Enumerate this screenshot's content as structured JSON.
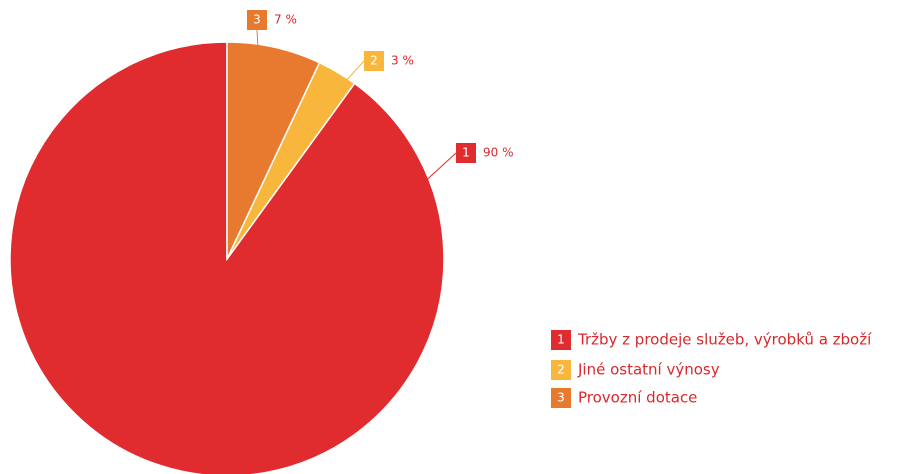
{
  "chart_data": {
    "type": "pie",
    "categories": [
      "Tržby z prodeje služeb, výrobků a zboží",
      "Jiné ostatní výnosy",
      "Provozní dotace"
    ],
    "values": [
      90,
      3,
      7
    ],
    "value_labels": [
      "90 %",
      "3 %",
      "7 %"
    ],
    "badges": [
      "1",
      "2",
      "3"
    ],
    "colors": [
      "#e02b2f",
      "#f8b73c",
      "#e87a30"
    ],
    "legend": "right"
  }
}
